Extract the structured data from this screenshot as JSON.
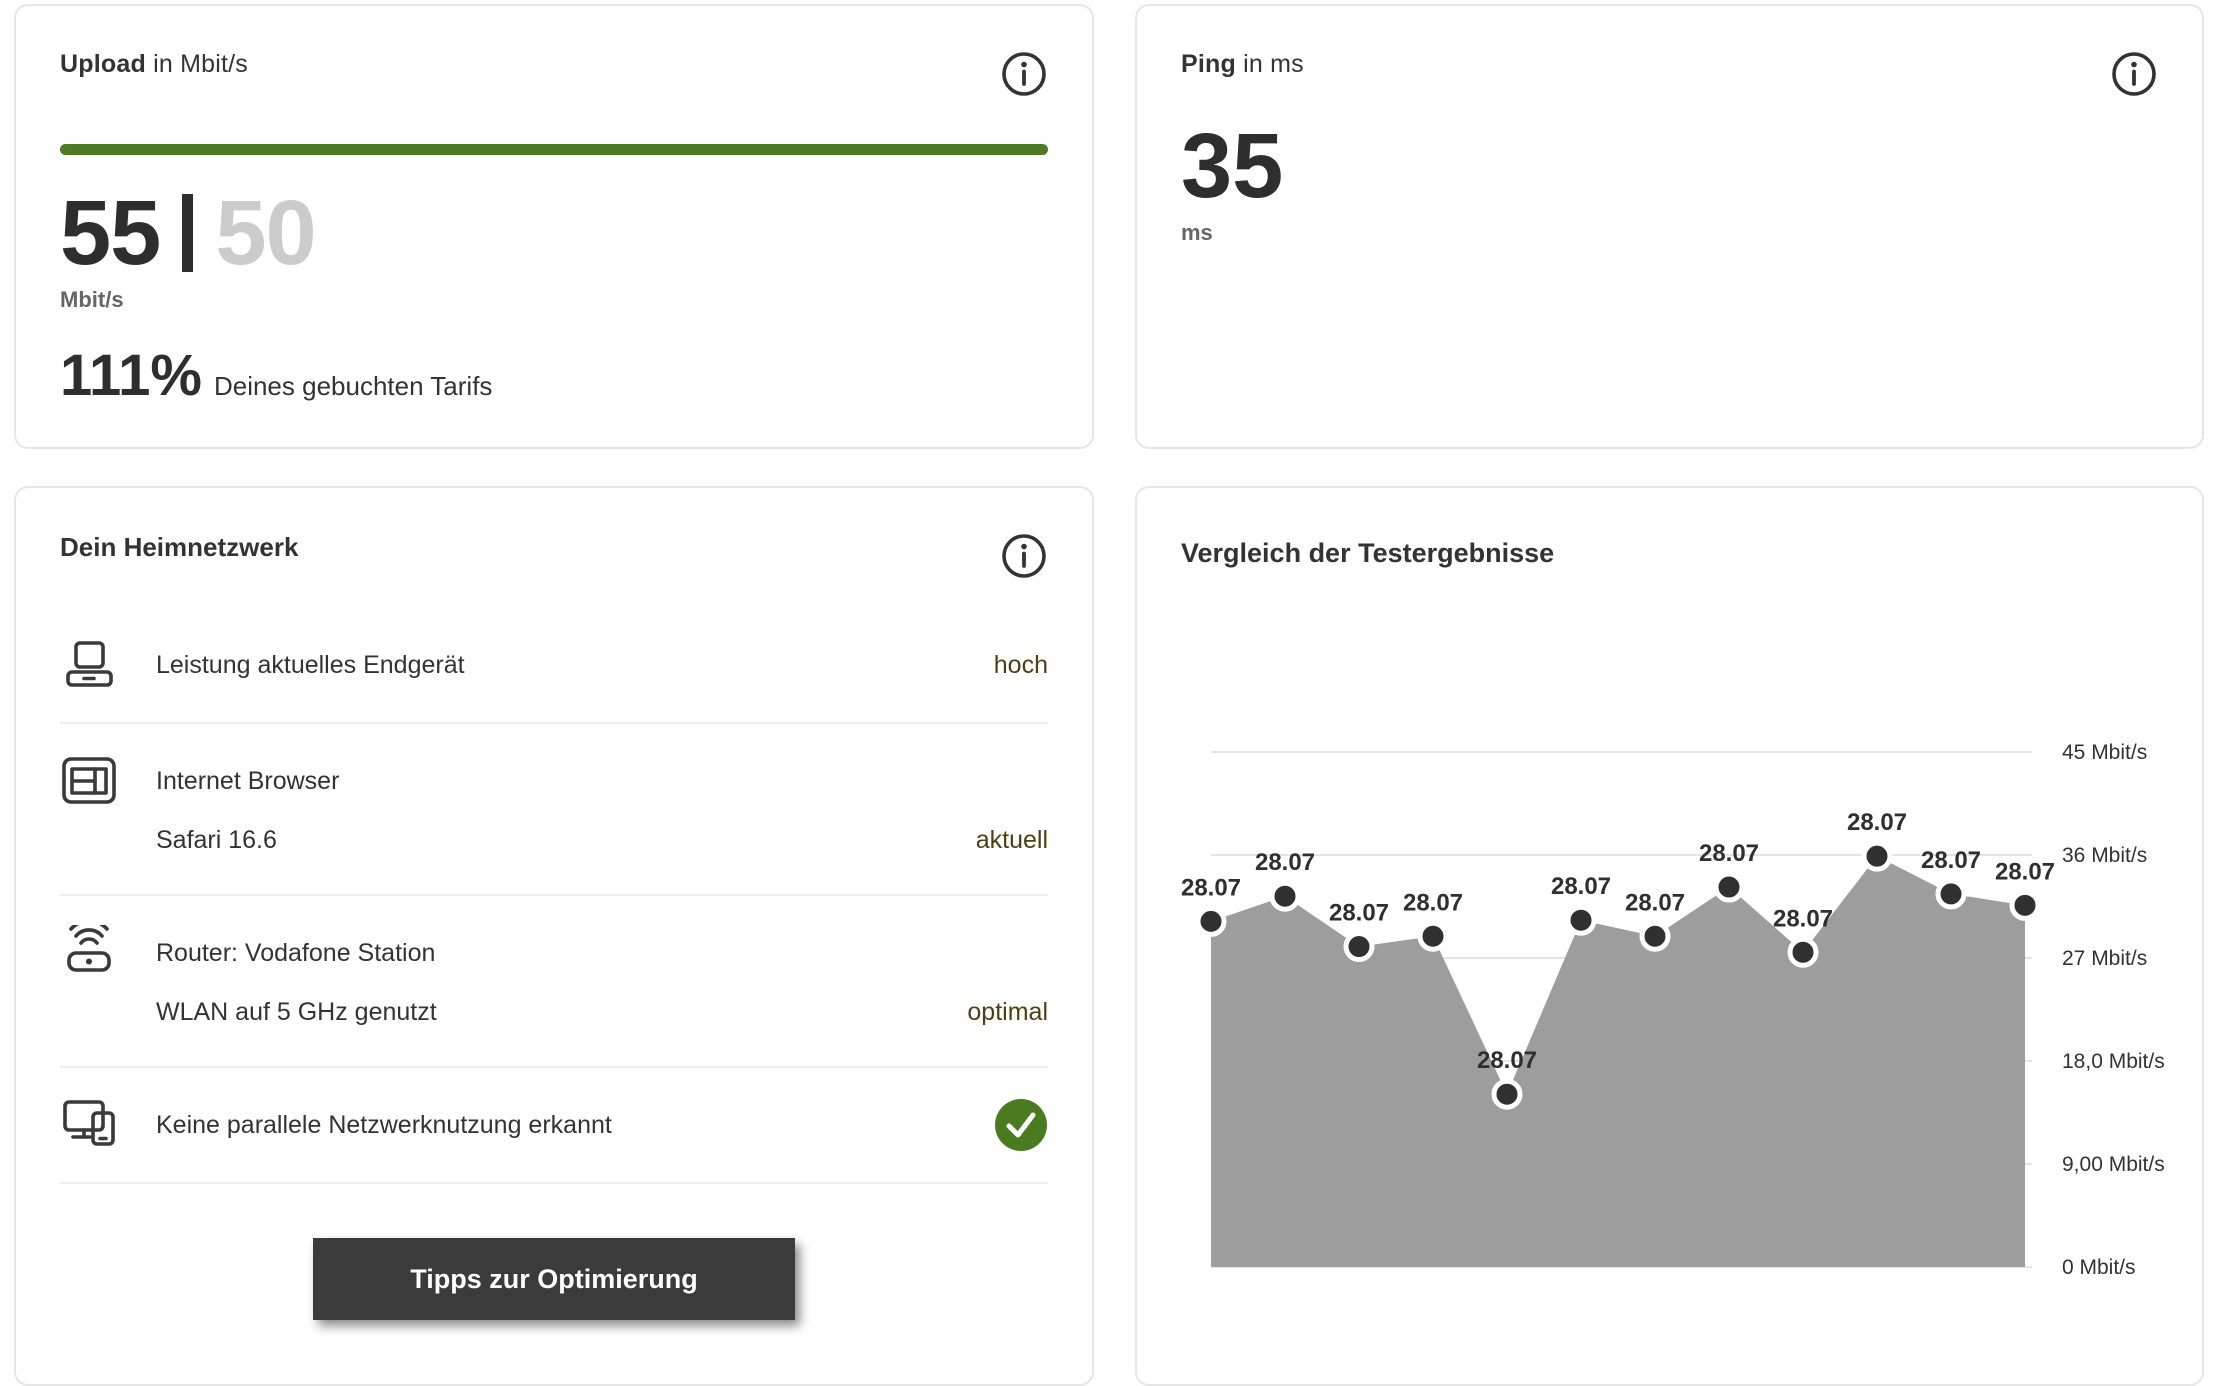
{
  "colors": {
    "accent_green": "#4d7a23",
    "check_green": "#4a7b21",
    "status_text": "#4e3e10",
    "area_gray": "#9d9d9d",
    "dot_dark": "#303030",
    "grid_gray": "#e4e4e4"
  },
  "upload_card": {
    "title_bold": "Upload",
    "title_rest": " in Mbit/s",
    "info_icon": "info-icon",
    "progress_percent": 100,
    "value": "55",
    "target": "50",
    "unit": "Mbit/s",
    "percent": "111%",
    "percent_label": "Deines gebuchten Tarifs"
  },
  "ping_card": {
    "title_bold": "Ping",
    "title_rest": " in ms",
    "info_icon": "info-icon",
    "value": "35",
    "unit": "ms"
  },
  "network_card": {
    "title": "Dein Heimnetzwerk",
    "info_icon": "info-icon",
    "rows": [
      {
        "icon": "laptop-icon",
        "label": "Leistung aktuelles Endgerät",
        "status": "hoch"
      },
      {
        "icon": "browser-icon",
        "label": "Internet Browser",
        "sublabel": "Safari 16.6",
        "status": "aktuell"
      },
      {
        "icon": "router-wifi-icon",
        "label": "Router: Vodafone Station",
        "sublabel": "WLAN auf 5 GHz genutzt",
        "status": "optimal"
      },
      {
        "icon": "devices-icon",
        "label": "Keine parallele Netzwerknutzung erkannt",
        "status_icon": "check-icon"
      }
    ],
    "button_label": "Tipps zur Optimierung"
  },
  "chart_card": {
    "title": "Vergleich der Testergebnisse"
  },
  "chart_data": {
    "type": "area",
    "title": "Vergleich der Testergebnisse",
    "x_labels": [
      "28.07",
      "28.07",
      "28.07",
      "28.07",
      "28.07",
      "28.07",
      "28.07",
      "28.07",
      "28.07",
      "28.07",
      "28.07",
      "28.07"
    ],
    "values": [
      30.2,
      32.4,
      28.0,
      28.9,
      15.1,
      30.3,
      28.9,
      33.2,
      27.5,
      35.9,
      32.6,
      31.6
    ],
    "ylabel_unit": "Mbit/s",
    "y_tick_labels": [
      "45 Mbit/s",
      "36 Mbit/s",
      "27 Mbit/s",
      "18,0 Mbit/s",
      "9,00 Mbit/s",
      "0 Mbit/s"
    ],
    "y_tick_values": [
      45,
      36,
      27,
      18,
      9,
      0
    ],
    "ylim": [
      0,
      45
    ],
    "grid": "on",
    "legend": "none",
    "area_color": "#9d9d9d",
    "dot_color": "#303030"
  }
}
